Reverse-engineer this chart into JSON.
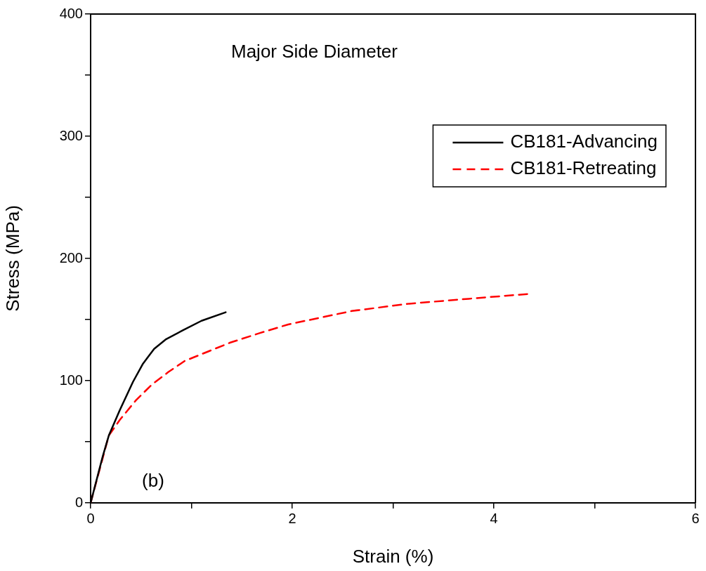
{
  "chart_data": {
    "type": "line",
    "title": "Major Side Diameter",
    "xlabel": "Strain (%)",
    "ylabel": "Stress (MPa)",
    "xlim": [
      0,
      6
    ],
    "ylim": [
      0,
      400
    ],
    "xticks": [
      0,
      {
        "value": 1,
        "label": null
      },
      2,
      {
        "value": 3,
        "label": null
      },
      4,
      {
        "value": 5,
        "label": null
      },
      6
    ],
    "yticks": [
      0,
      {
        "value": 50,
        "label": null
      },
      100,
      {
        "value": 150,
        "label": null
      },
      200,
      {
        "value": 250,
        "label": null
      },
      300,
      {
        "value": 350,
        "label": null
      },
      400
    ],
    "grid": false,
    "legend": "top right",
    "marker": "none",
    "annotations": [
      "(b)"
    ],
    "series": [
      {
        "name": "CB181-Advancing",
        "color": "#000000",
        "line_style": "solid",
        "x": [
          0,
          0.12,
          0.18,
          0.29,
          0.42,
          0.52,
          0.63,
          0.75,
          0.91,
          1.1,
          1.34
        ],
        "values": [
          0,
          38,
          55,
          76,
          99,
          114,
          126,
          134,
          141,
          149,
          156
        ]
      },
      {
        "name": "CB181-Retreating",
        "color": "#ff0000",
        "line_style": "dashed",
        "x": [
          0,
          0.18,
          0.29,
          0.45,
          0.61,
          0.77,
          0.93,
          1.17,
          1.38,
          1.68,
          1.96,
          2.59,
          3.16,
          3.75,
          4.35
        ],
        "values": [
          0,
          55,
          68,
          84,
          97,
          107,
          116,
          124,
          131,
          139,
          146,
          157,
          163,
          167,
          171
        ]
      }
    ]
  }
}
